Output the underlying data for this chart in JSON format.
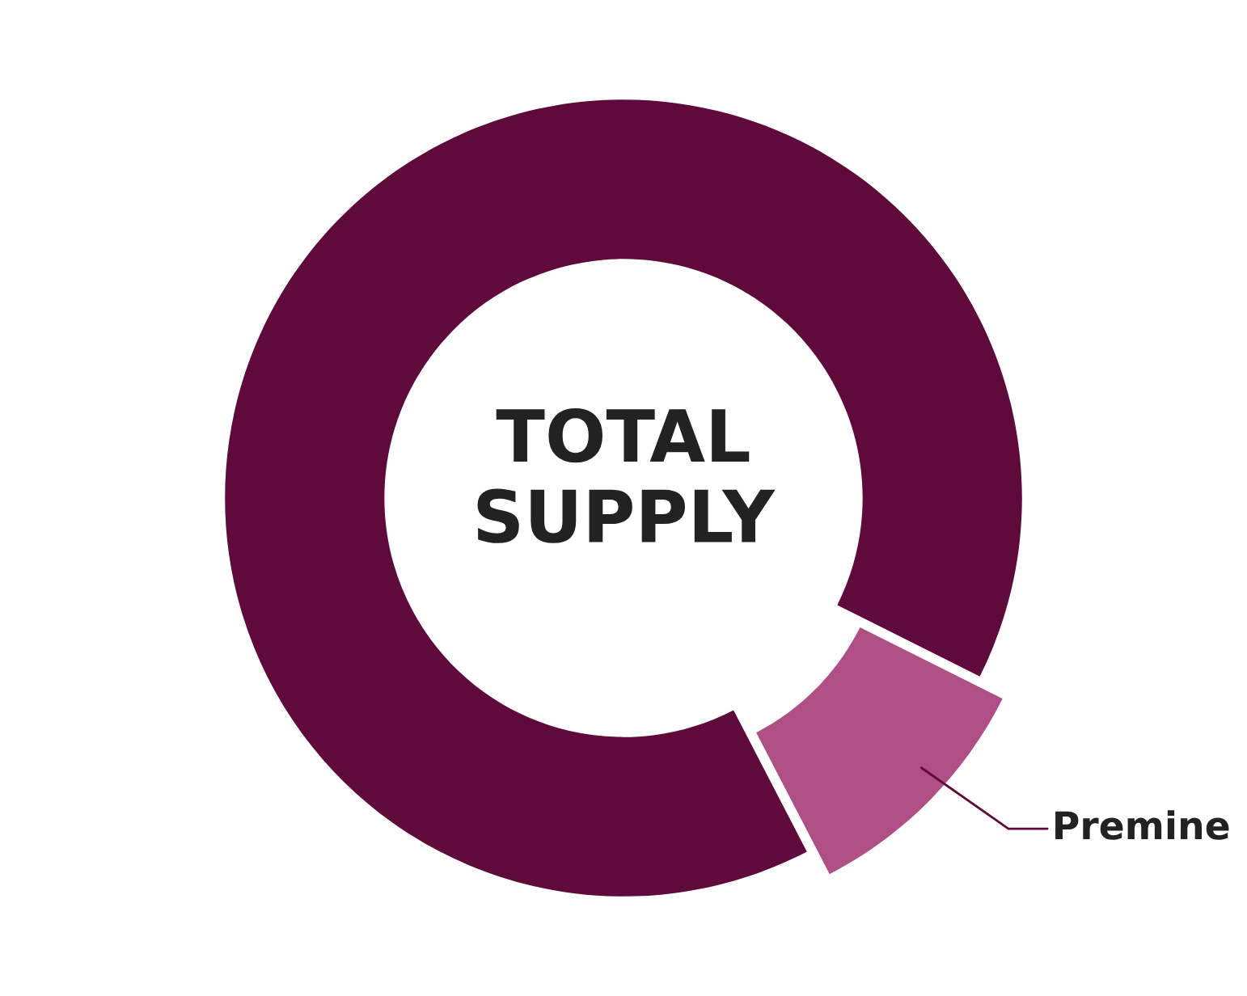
{
  "chart_data": {
    "type": "donut",
    "categories": [
      null,
      "Premine"
    ],
    "values": [
      90,
      10
    ],
    "colors": [
      "#600a3c",
      "#b04f86"
    ],
    "annotations": [
      "TOTAL\nSUPPLY"
    ]
  }
}
